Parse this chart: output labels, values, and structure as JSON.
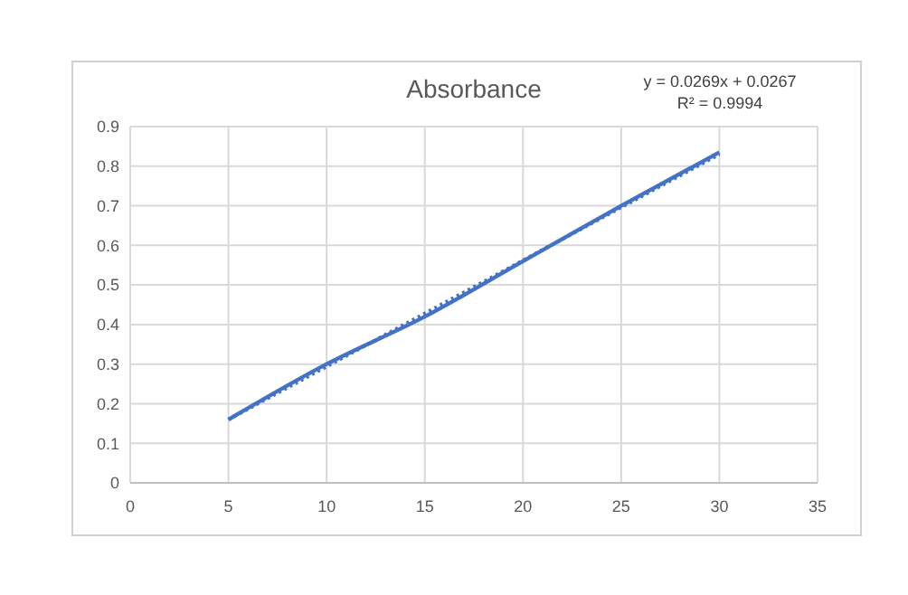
{
  "chart_data": {
    "type": "line",
    "title": "Absorbance",
    "annotations": [
      "y = 0.0269x + 0.0267",
      "R² = 0.9994"
    ],
    "series": [
      {
        "color": "#4472c4",
        "x": [
          5,
          10,
          15,
          20,
          25,
          30
        ],
        "values": [
          0.16,
          0.3,
          0.42,
          0.56,
          0.7,
          0.835
        ],
        "line_style": "solid"
      },
      {
        "type": "line",
        "color": "#4472c4",
        "x": [
          5,
          30
        ],
        "values": [
          0.16,
          0.83
        ],
        "line_style": "dotted"
      }
    ],
    "xlim": [
      0,
      35
    ],
    "xticks": [
      0,
      5,
      10,
      15,
      20,
      25,
      30,
      35
    ],
    "ylim": [
      0,
      0.9
    ],
    "yticks": [
      0,
      0.1,
      0.2,
      0.3,
      0.4,
      0.5,
      0.6,
      0.7,
      0.8,
      0.9
    ],
    "grid": true
  }
}
